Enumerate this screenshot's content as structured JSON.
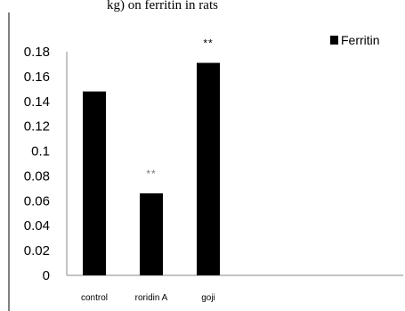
{
  "chart_data": {
    "type": "bar",
    "title_fragment": "kg) on ferritin in rats",
    "categories": [
      "control",
      "roridin A",
      "goji"
    ],
    "series": [
      {
        "name": "Ferritin",
        "values": [
          0.148,
          0.066,
          0.171
        ],
        "color": "#000000"
      }
    ],
    "annotations": [
      "",
      "**",
      "**"
    ],
    "annotation_colors": [
      "#000000",
      "#7a7a7a",
      "#000000"
    ],
    "ylim": [
      0,
      0.18
    ],
    "yticks": [
      "0",
      "0.02",
      "0.04",
      "0.06",
      "0.08",
      "0.1",
      "0.12",
      "0.14",
      "0.16",
      "0.18"
    ],
    "ytick_values": [
      0,
      0.02,
      0.04,
      0.06,
      0.08,
      0.1,
      0.12,
      0.14,
      0.16,
      0.18
    ],
    "legend_position": "top-right",
    "grid": false,
    "xlabel": "",
    "ylabel": ""
  }
}
